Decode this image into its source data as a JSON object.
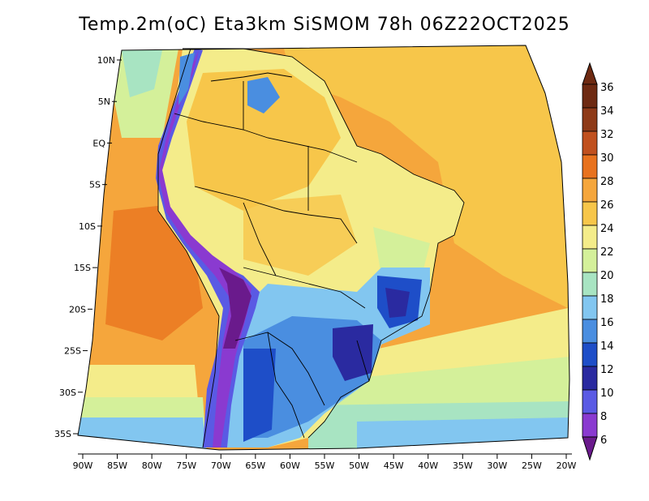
{
  "title": "Temp.2m(oC) Eta3km SiSMOM 78h 06Z22OCT2025",
  "map": {
    "lat_labels": [
      {
        "lat": 10,
        "label": "10N"
      },
      {
        "lat": 5,
        "label": "5N"
      },
      {
        "lat": 0,
        "label": "EQ"
      },
      {
        "lat": -5,
        "label": "5S"
      },
      {
        "lat": -10,
        "label": "10S"
      },
      {
        "lat": -15,
        "label": "15S"
      },
      {
        "lat": -20,
        "label": "20S"
      },
      {
        "lat": -25,
        "label": "25S"
      },
      {
        "lat": -30,
        "label": "30S"
      },
      {
        "lat": -35,
        "label": "35S"
      }
    ],
    "lon_labels": [
      {
        "lon": -90,
        "label": "90W"
      },
      {
        "lon": -85,
        "label": "85W"
      },
      {
        "lon": -80,
        "label": "80W"
      },
      {
        "lon": -75,
        "label": "75W"
      },
      {
        "lon": -70,
        "label": "70W"
      },
      {
        "lon": -65,
        "label": "65W"
      },
      {
        "lon": -60,
        "label": "60W"
      },
      {
        "lon": -55,
        "label": "55W"
      },
      {
        "lon": -50,
        "label": "50W"
      },
      {
        "lon": -45,
        "label": "45W"
      },
      {
        "lon": -40,
        "label": "40W"
      },
      {
        "lon": -35,
        "label": "35W"
      },
      {
        "lon": -30,
        "label": "30W"
      },
      {
        "lon": -25,
        "label": "25W"
      },
      {
        "lon": -20,
        "label": "20W"
      }
    ]
  },
  "legend": {
    "levels": [
      "36",
      "34",
      "32",
      "30",
      "28",
      "26",
      "24",
      "22",
      "20",
      "18",
      "16",
      "14",
      "12",
      "10",
      "8",
      "6"
    ],
    "colors": [
      "#6e2a12",
      "#8e3a18",
      "#c0501e",
      "#e8721e",
      "#f5a63c",
      "#f7c64a",
      "#f4ec8a",
      "#d4f09a",
      "#a8e4c2",
      "#82c6f0",
      "#4a8ee0",
      "#1e4ec8",
      "#2a2aa0",
      "#5a5ae4",
      "#8a3ad0",
      "#6a1a8c"
    ]
  }
}
